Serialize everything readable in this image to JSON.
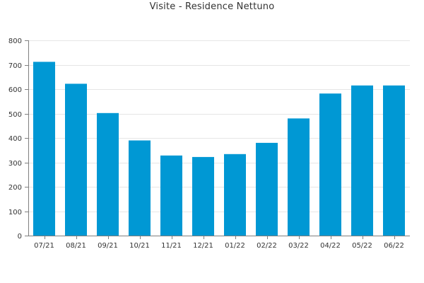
{
  "chart_data": {
    "type": "bar",
    "title": "Visite - Residence Nettuno",
    "xlabel": "",
    "ylabel": "",
    "categories": [
      "07/21",
      "08/21",
      "09/21",
      "10/21",
      "11/21",
      "12/21",
      "01/22",
      "02/22",
      "03/22",
      "04/22",
      "05/22",
      "06/22"
    ],
    "values": [
      712,
      622,
      502,
      390,
      328,
      322,
      334,
      380,
      480,
      582,
      615,
      615
    ],
    "ylim": [
      0,
      800
    ],
    "yticks": [
      0,
      100,
      200,
      300,
      400,
      500,
      600,
      700,
      800
    ],
    "grid": true,
    "legend": "none",
    "colors": {
      "bar": "#0098d4",
      "axis": "#7f7f7f",
      "grid": "#e6e6e6",
      "text": "#333333"
    }
  }
}
